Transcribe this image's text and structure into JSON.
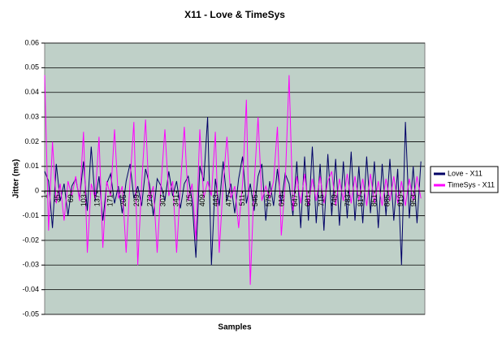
{
  "chart_data": {
    "type": "line",
    "title": "X11 - Love & TimeSys",
    "x_label": "Samples",
    "y_label": "Jitter (ms)",
    "x": [
      1,
      11,
      21,
      31,
      41,
      51,
      61,
      71,
      81,
      91,
      101,
      111,
      121,
      131,
      141,
      151,
      161,
      171,
      181,
      191,
      201,
      211,
      221,
      231,
      241,
      251,
      261,
      271,
      281,
      291,
      301,
      311,
      321,
      331,
      341,
      351,
      361,
      371,
      381,
      391,
      401,
      411,
      421,
      431,
      441,
      451,
      461,
      471,
      481,
      491,
      501,
      511,
      521,
      531,
      541,
      551,
      561,
      571,
      581,
      591,
      601,
      611,
      621,
      631,
      641,
      651,
      661,
      671,
      681,
      691,
      701,
      711,
      721,
      731,
      741,
      751,
      761,
      771,
      781,
      791,
      801,
      811,
      821,
      831,
      841,
      851,
      861,
      871,
      881,
      891,
      901,
      911,
      921,
      931,
      941,
      951,
      961,
      971
    ],
    "series": [
      {
        "name": "Love - X11",
        "color": "#000066",
        "values": [
          0.008,
          0.004,
          -0.015,
          0.011,
          -0.004,
          0.003,
          -0.01,
          0.002,
          0.005,
          -0.003,
          0.012,
          -0.008,
          0.018,
          -0.004,
          0.006,
          -0.012,
          0.003,
          0.007,
          -0.005,
          0.002,
          -0.009,
          0.004,
          0.011,
          -0.003,
          0.002,
          -0.006,
          0.009,
          0.003,
          -0.01,
          0.005,
          0.002,
          -0.004,
          0.008,
          -0.002,
          0.004,
          -0.007,
          0.003,
          0.006,
          -0.004,
          -0.027,
          0.01,
          0.004,
          0.03,
          -0.03,
          0.005,
          -0.006,
          0.012,
          -0.004,
          0.003,
          -0.009,
          0.005,
          0.014,
          -0.005,
          0.003,
          -0.008,
          0.006,
          0.011,
          -0.012,
          0.004,
          -0.006,
          0.009,
          -0.005,
          0.007,
          0.003,
          -0.01,
          0.012,
          -0.015,
          0.014,
          -0.012,
          0.018,
          -0.013,
          0.011,
          -0.016,
          0.015,
          -0.01,
          0.013,
          -0.014,
          0.012,
          -0.011,
          0.016,
          -0.012,
          0.01,
          -0.013,
          0.014,
          -0.009,
          0.012,
          -0.015,
          0.011,
          -0.01,
          0.013,
          -0.012,
          0.009,
          -0.03,
          0.028,
          -0.011,
          0.01,
          -0.013,
          0.012
        ]
      },
      {
        "name": "TimeSys - X11",
        "color": "#ff00ff",
        "values": [
          0.047,
          -0.016,
          0.02,
          -0.005,
          0.003,
          -0.012,
          0.004,
          -0.002,
          0.006,
          -0.004,
          0.024,
          -0.025,
          0.003,
          -0.003,
          0.022,
          -0.023,
          0.004,
          -0.002,
          0.025,
          -0.003,
          0.002,
          -0.025,
          0.004,
          0.028,
          -0.03,
          0.003,
          0.029,
          -0.004,
          0.002,
          -0.025,
          0.003,
          0.025,
          -0.002,
          0.004,
          -0.025,
          0.002,
          0.026,
          -0.004,
          0.003,
          -0.02,
          0.025,
          -0.003,
          0.004,
          -0.002,
          0.024,
          -0.025,
          0.003,
          0.022,
          -0.003,
          0.002,
          -0.015,
          0.003,
          0.037,
          -0.038,
          0.003,
          0.03,
          -0.004,
          0.002,
          -0.003,
          0.004,
          0.026,
          -0.018,
          0.003,
          0.047,
          -0.008,
          0.006,
          -0.005,
          0.007,
          -0.006,
          0.005,
          -0.004,
          0.006,
          -0.005,
          0.004,
          0.008,
          -0.006,
          0.005,
          -0.004,
          0.007,
          -0.005,
          0.006,
          -0.004,
          0.005,
          -0.006,
          0.007,
          -0.005,
          0.004,
          -0.006,
          0.005,
          -0.004,
          0.006,
          -0.005,
          0.004,
          -0.006,
          0.005,
          -0.004,
          0.006,
          -0.003
        ]
      }
    ],
    "xlim": [
      1,
      981
    ],
    "xticks": [
      1,
      35,
      69,
      103,
      137,
      171,
      205,
      239,
      273,
      307,
      341,
      375,
      409,
      443,
      477,
      511,
      545,
      579,
      613,
      647,
      681,
      715,
      749,
      783,
      817,
      851,
      885,
      919,
      953
    ],
    "ylim": [
      -0.05,
      0.06
    ],
    "yticks": [
      -0.05,
      -0.04,
      -0.03,
      -0.02,
      -0.01,
      0,
      0.01,
      0.02,
      0.03,
      0.04,
      0.05,
      0.06
    ],
    "grid": true,
    "legend": "right"
  }
}
